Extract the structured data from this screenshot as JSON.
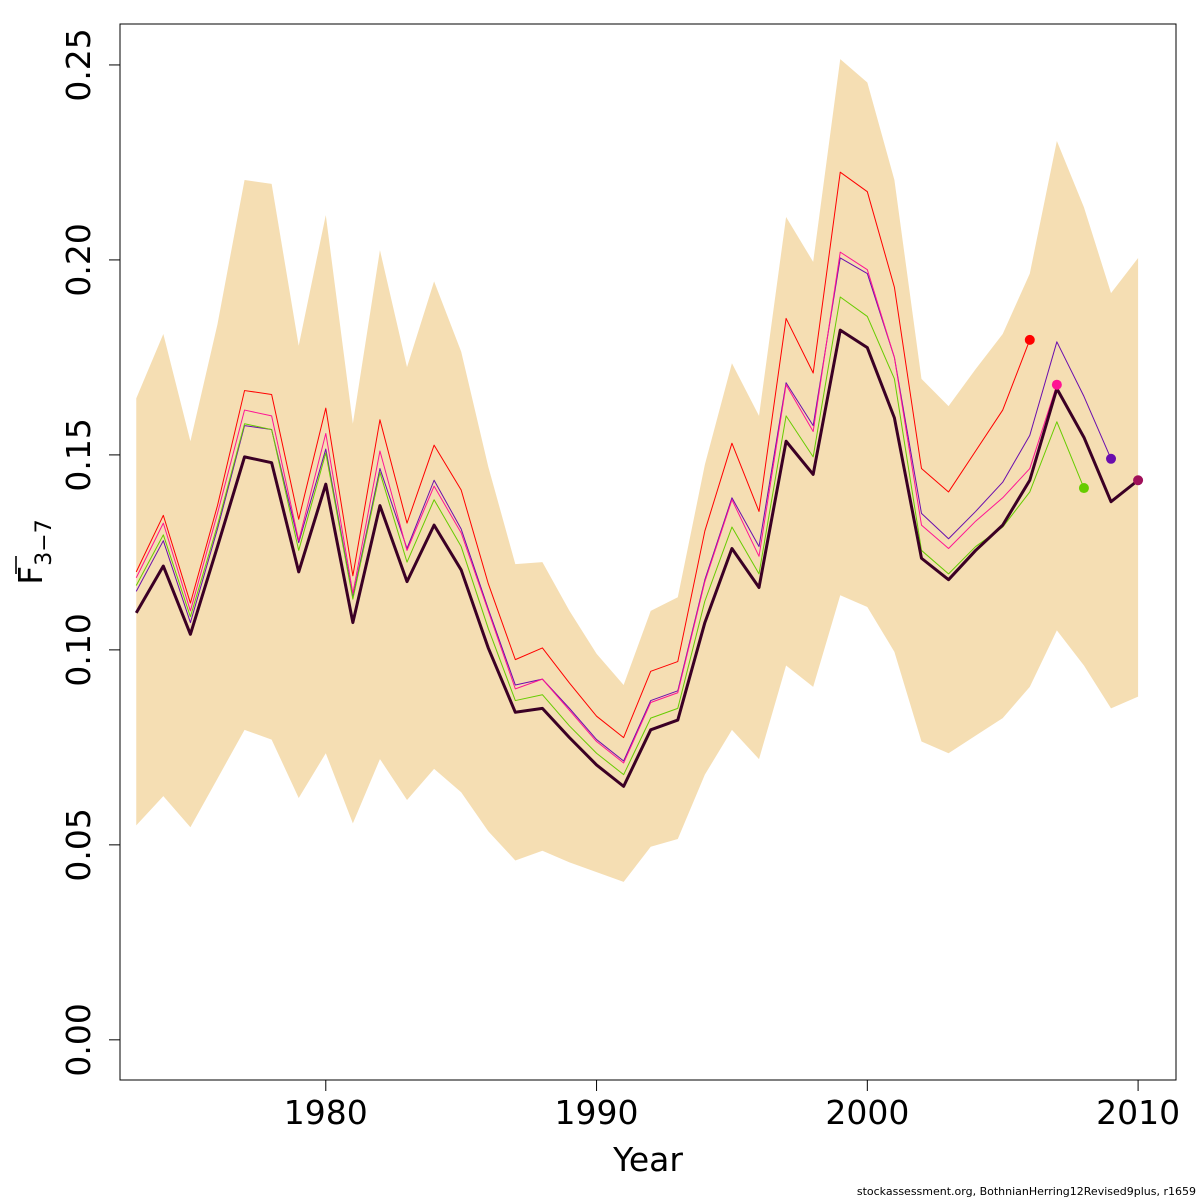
{
  "chart_data": {
    "type": "line",
    "xlabel": "Year",
    "ylabel": "F",
    "ylabel_sub": "3−7",
    "xlim": [
      1972.4,
      2011.4
    ],
    "ylim": [
      -0.0103,
      0.2605
    ],
    "x_ticks": [
      1980,
      1990,
      2000,
      2010
    ],
    "y_ticks": [
      0.0,
      0.05,
      0.1,
      0.15,
      0.2,
      0.25
    ],
    "y_tick_labels": [
      "0.00",
      "0.05",
      "0.10",
      "0.15",
      "0.20",
      "0.25"
    ],
    "grid": false,
    "colors": {
      "band": "#f5deb3",
      "main": "#3b0025",
      "red": "#ff0000",
      "pink": "#ff1493",
      "green": "#66cc00",
      "purple": "#6a0dad",
      "maroon": "#a0105a"
    },
    "confidence_band": {
      "x": [
        1973,
        1974,
        1975,
        1976,
        1977,
        1978,
        1979,
        1980,
        1981,
        1982,
        1983,
        1984,
        1985,
        1986,
        1987,
        1988,
        1989,
        1990,
        1991,
        1992,
        1993,
        1994,
        1995,
        1996,
        1997,
        1998,
        1999,
        2000,
        2001,
        2002,
        2003,
        2004,
        2005,
        2006,
        2007,
        2008,
        2009,
        2010
      ],
      "lower": [
        0.055,
        0.0625,
        0.0545,
        0.067,
        0.0795,
        0.077,
        0.062,
        0.0735,
        0.0555,
        0.072,
        0.0615,
        0.0695,
        0.0635,
        0.0535,
        0.046,
        0.0485,
        0.0455,
        0.043,
        0.0405,
        0.0495,
        0.0515,
        0.068,
        0.0795,
        0.072,
        0.096,
        0.0905,
        0.114,
        0.111,
        0.0995,
        0.0765,
        0.0735,
        0.078,
        0.0825,
        0.0905,
        0.105,
        0.096,
        0.085,
        0.088
      ],
      "upper": [
        0.1645,
        0.181,
        0.1535,
        0.1835,
        0.2205,
        0.2195,
        0.178,
        0.2115,
        0.158,
        0.2025,
        0.1725,
        0.1945,
        0.1765,
        0.147,
        0.122,
        0.1225,
        0.11,
        0.099,
        0.091,
        0.11,
        0.1135,
        0.1475,
        0.1735,
        0.16,
        0.211,
        0.1995,
        0.2515,
        0.2455,
        0.2205,
        0.1695,
        0.1625,
        0.172,
        0.181,
        0.1965,
        0.2305,
        0.2135,
        0.1915,
        0.2005
      ]
    },
    "series": [
      {
        "color": "#ff0000",
        "x": [
          1973,
          1974,
          1975,
          1976,
          1977,
          1978,
          1979,
          1980,
          1981,
          1982,
          1983,
          1984,
          1985,
          1986,
          1987,
          1988,
          1989,
          1990,
          1991,
          1992,
          1993,
          1994,
          1995,
          1996,
          1997,
          1998,
          1999,
          2000,
          2001,
          2002,
          2003,
          2004,
          2005,
          2006
        ],
        "values": [
          0.12,
          0.1345,
          0.112,
          0.137,
          0.1665,
          0.1655,
          0.1335,
          0.162,
          0.119,
          0.159,
          0.1325,
          0.1525,
          0.141,
          0.117,
          0.0975,
          0.1005,
          0.0915,
          0.083,
          0.0775,
          0.0945,
          0.097,
          0.1305,
          0.153,
          0.1355,
          0.185,
          0.171,
          0.2225,
          0.2175,
          0.193,
          0.1465,
          0.1405,
          0.151,
          0.1615,
          0.1795
        ],
        "end_point": true,
        "width": 1
      },
      {
        "color": "#6a0dad",
        "x": [
          1973,
          1974,
          1975,
          1976,
          1977,
          1978,
          1979,
          1980,
          1981,
          1982,
          1983,
          1984,
          1985,
          1986,
          1987,
          1988,
          1989,
          1990,
          1991,
          1992,
          1993,
          1994,
          1995,
          1996,
          1997,
          1998,
          1999,
          2000,
          2001,
          2002,
          2003,
          2004,
          2005,
          2006,
          2007,
          2008,
          2009
        ],
        "values": [
          0.115,
          0.128,
          0.107,
          0.131,
          0.1575,
          0.1565,
          0.1275,
          0.1515,
          0.1135,
          0.1465,
          0.126,
          0.1435,
          0.131,
          0.1105,
          0.091,
          0.0925,
          0.085,
          0.077,
          0.0715,
          0.087,
          0.0895,
          0.118,
          0.139,
          0.1265,
          0.1685,
          0.1575,
          0.2005,
          0.1965,
          0.175,
          0.135,
          0.1285,
          0.1355,
          0.143,
          0.155,
          0.179,
          0.165,
          0.149
        ],
        "end_point": true,
        "width": 1
      },
      {
        "color": "#ff1493",
        "x": [
          1973,
          1974,
          1975,
          1976,
          1977,
          1978,
          1979,
          1980,
          1981,
          1982,
          1983,
          1984,
          1985,
          1986,
          1987,
          1988,
          1989,
          1990,
          1991,
          1992,
          1993,
          1994,
          1995,
          1996,
          1997,
          1998,
          1999,
          2000,
          2001,
          2002,
          2003,
          2004,
          2005,
          2006,
          2007
        ],
        "values": [
          0.1185,
          0.1325,
          0.11,
          0.135,
          0.1615,
          0.16,
          0.128,
          0.1555,
          0.1145,
          0.151,
          0.1255,
          0.142,
          0.13,
          0.11,
          0.09,
          0.0925,
          0.0845,
          0.0765,
          0.071,
          0.0865,
          0.089,
          0.1175,
          0.1385,
          0.124,
          0.168,
          0.156,
          0.202,
          0.1975,
          0.175,
          0.132,
          0.126,
          0.133,
          0.139,
          0.1465,
          0.168
        ],
        "end_point": true,
        "width": 1
      },
      {
        "color": "#66cc00",
        "x": [
          1973,
          1974,
          1975,
          1976,
          1977,
          1978,
          1979,
          1980,
          1981,
          1982,
          1983,
          1984,
          1985,
          1986,
          1987,
          1988,
          1989,
          1990,
          1991,
          1992,
          1993,
          1994,
          1995,
          1996,
          1997,
          1998,
          1999,
          2000,
          2001,
          2002,
          2003,
          2004,
          2005,
          2006,
          2007,
          2008
        ],
        "values": [
          0.1165,
          0.1295,
          0.1085,
          0.132,
          0.158,
          0.1565,
          0.1255,
          0.1505,
          0.113,
          0.1455,
          0.1225,
          0.1385,
          0.1265,
          0.1055,
          0.087,
          0.0885,
          0.0805,
          0.0735,
          0.068,
          0.0825,
          0.085,
          0.1125,
          0.1315,
          0.1195,
          0.16,
          0.1495,
          0.1905,
          0.1855,
          0.1695,
          0.1255,
          0.1195,
          0.1265,
          0.1315,
          0.1405,
          0.1585,
          0.1415
        ],
        "end_point": true,
        "width": 1
      },
      {
        "color": "#3b0025",
        "x": [
          1973,
          1974,
          1975,
          1976,
          1977,
          1978,
          1979,
          1980,
          1981,
          1982,
          1983,
          1984,
          1985,
          1986,
          1987,
          1988,
          1989,
          1990,
          1991,
          1992,
          1993,
          1994,
          1995,
          1996,
          1997,
          1998,
          1999,
          2000,
          2001,
          2002,
          2003,
          2004,
          2005,
          2006,
          2007,
          2008,
          2009,
          2010
        ],
        "values": [
          0.1095,
          0.1215,
          0.104,
          0.1265,
          0.1495,
          0.148,
          0.12,
          0.1425,
          0.107,
          0.137,
          0.1175,
          0.132,
          0.1205,
          0.1005,
          0.084,
          0.085,
          0.0775,
          0.0705,
          0.065,
          0.0795,
          0.082,
          0.107,
          0.126,
          0.116,
          0.1535,
          0.145,
          0.182,
          0.1775,
          0.1595,
          0.1235,
          0.118,
          0.1255,
          0.132,
          0.1435,
          0.167,
          0.1545,
          0.138,
          0.1435
        ],
        "end_point": false,
        "width": 3
      },
      {
        "color": "#a0105a",
        "x": [
          2010
        ],
        "values": [
          0.1435
        ],
        "end_point": true,
        "width": 1
      }
    ]
  },
  "credit": "stockassessment.org, BothnianHerring12Revised9plus, r1659"
}
